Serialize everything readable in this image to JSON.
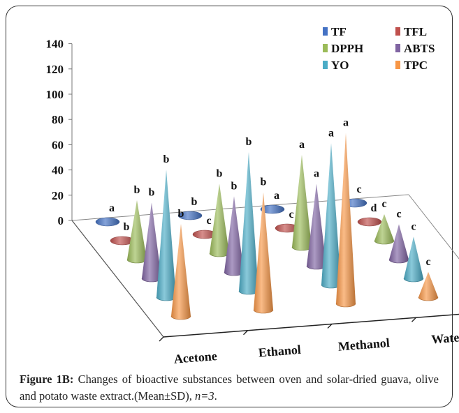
{
  "chart_data": {
    "type": "bar",
    "style": "3d-cone",
    "categories": [
      "Acetone",
      "Ethanol",
      "Methanol",
      "Water"
    ],
    "ylim": [
      0,
      140
    ],
    "yticks": [
      0,
      20,
      40,
      60,
      80,
      100,
      120,
      140
    ],
    "legend_position": "top-right",
    "series": [
      {
        "name": "TF",
        "color": "#4472c4",
        "values": [
          0.5,
          0.5,
          0.5,
          0.5
        ],
        "letters": [
          "a",
          "b",
          "a",
          "c"
        ]
      },
      {
        "name": "TFL",
        "color": "#c0504d",
        "values": [
          0.5,
          0.5,
          0.5,
          0.5
        ],
        "letters": [
          "b",
          "c",
          "c",
          "d"
        ]
      },
      {
        "name": "DPPH",
        "color": "#9bbb59",
        "values": [
          47,
          55,
          73,
          21
        ],
        "letters": [
          "b",
          "b",
          "a",
          "c"
        ]
      },
      {
        "name": "ABTS",
        "color": "#8064a2",
        "values": [
          60,
          60,
          65,
          28
        ],
        "letters": [
          "b",
          "b",
          "a",
          "c"
        ]
      },
      {
        "name": "YO",
        "color": "#4bacc6",
        "values": [
          101,
          110,
          112,
          33
        ],
        "letters": [
          "b",
          "b",
          "a",
          "c"
        ]
      },
      {
        "name": "TPC",
        "color": "#f79646",
        "values": [
          73,
          93,
          135,
          20
        ],
        "letters": [
          "b",
          "b",
          "a",
          "c"
        ]
      }
    ]
  },
  "caption": {
    "label": "Figure 1B:",
    "text_main": " Changes of bioactive substances between oven and solar-dried guava, olive and potato waste extract.(Mean±SD), ",
    "n_italic": "n=3",
    "end": "."
  }
}
